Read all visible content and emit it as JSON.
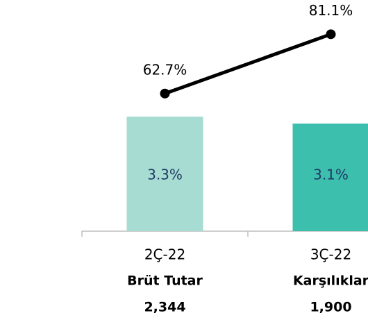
{
  "chart_data": {
    "type": "bar_line",
    "categories": [
      "2Ç-22",
      "3Ç-22"
    ],
    "category_names": [
      "Brüt Tutar",
      "Karşılıklar"
    ],
    "amounts": [
      "2,344",
      "1,900"
    ],
    "ylim": [
      0,
      6.5
    ],
    "y2lim": [
      20,
      90
    ],
    "series": [
      {
        "type": "bar",
        "values": [
          3.3,
          3.1
        ],
        "value_labels": [
          "3.3%",
          "3.1%"
        ],
        "colors": [
          "#a6dcd2",
          "#3dbfae"
        ]
      },
      {
        "type": "line",
        "axis": "y2",
        "values": [
          62.7,
          81.1
        ],
        "value_labels": [
          "62.7%",
          "81.1%"
        ],
        "color": "#000000"
      }
    ]
  }
}
